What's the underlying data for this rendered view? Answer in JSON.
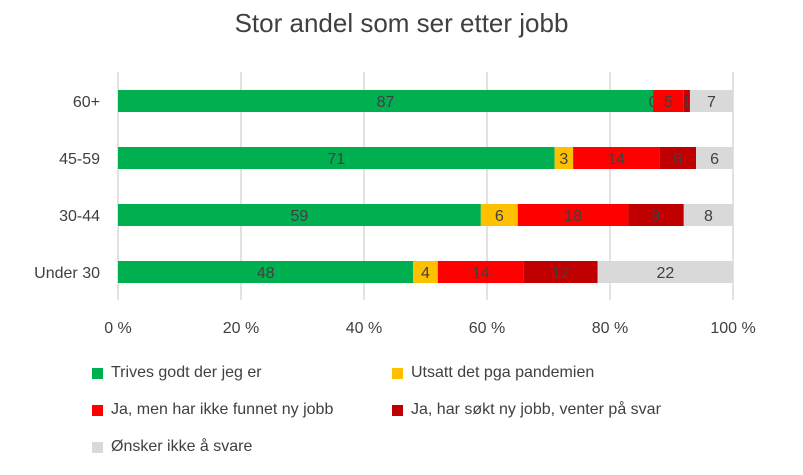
{
  "chart_data": {
    "type": "bar",
    "orientation": "horizontal",
    "stacked": "percent",
    "title": "Stor andel som ser etter jobb",
    "categories": [
      "60+",
      "45-59",
      "30-44",
      "Under 30"
    ],
    "series": [
      {
        "name": "Trives godt der jeg er",
        "color": "#00B050",
        "values": [
          87,
          71,
          59,
          48
        ]
      },
      {
        "name": "Utsatt det pga pandemien",
        "color": "#FFC000",
        "values": [
          0,
          3,
          6,
          4
        ]
      },
      {
        "name": "Ja, men har ikke funnet ny jobb",
        "color": "#FF0000",
        "values": [
          5,
          14,
          18,
          14
        ]
      },
      {
        "name": "Ja, har søkt ny jobb, venter på svar",
        "color": "#C00000",
        "values": [
          1,
          6,
          9,
          12
        ]
      },
      {
        "name": "Ønsker ikke å svare",
        "color": "#D9D9D9",
        "values": [
          7,
          6,
          8,
          22
        ]
      }
    ],
    "xlim": [
      0,
      100
    ],
    "xticks": [
      "0 %",
      "20 %",
      "40 %",
      "60 %",
      "80 %",
      "100 %"
    ],
    "grid": "vertical",
    "legend": "bottom"
  }
}
